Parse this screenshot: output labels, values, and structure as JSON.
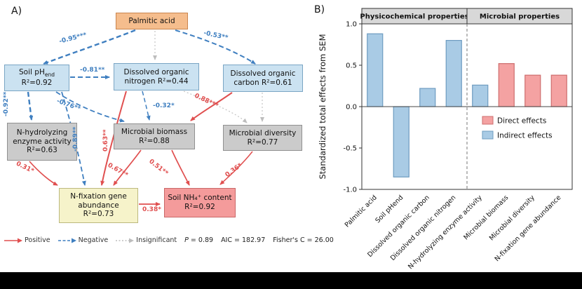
{
  "figure": {
    "panelA_label": "A)",
    "panelB_label": "B)"
  },
  "sem": {
    "boxes": {
      "palmitic": {
        "line1": "Palmitic acid"
      },
      "soil_ph": {
        "main": "Soil pH",
        "sub": "end",
        "r2": "R²=0.92"
      },
      "don": {
        "line1": "Dissolved organic",
        "line2": "nitrogen  R²=0.44"
      },
      "doc": {
        "line1": "Dissolved organic",
        "line2": "carbon   R²=0.61"
      },
      "nhea": {
        "line1": "N-hydrolyzing",
        "line2": "enzyme activity",
        "line3": "R²=0.63"
      },
      "mb": {
        "line1": "Microbial biomass",
        "line2": "R²=0.88"
      },
      "md": {
        "line1": "Microbial diversity",
        "line2": "R²=0.77"
      },
      "nfg": {
        "line1": "N-fixation gene",
        "line2": "abundance",
        "line3": "R²=0.73"
      },
      "nh4": {
        "line1": "Soil NH₄⁺ content",
        "line2": "R²=0.92"
      }
    },
    "coefficients": {
      "c1": "-0.95***",
      "c2": "-0.53**",
      "c3": "-0.81**",
      "c4": "-0.92**",
      "c5": "-0.76**",
      "c6": "-0.89**",
      "c7": "-0.32*",
      "c8": "0.88***",
      "c9": "0.63**",
      "c10": "0.31*",
      "c11": "0.67**",
      "c12": "0.51**",
      "c13": "0.36*",
      "c14": "0.38*"
    },
    "legend": {
      "positive": "Positive",
      "negative": "Negative",
      "insignificant": "Insignificant"
    },
    "stats": {
      "p_label": "P",
      "p_value": "= 0.89",
      "aic": "AIC = 182.97",
      "fisher": "Fisher's C = 26.00"
    }
  },
  "chart_data": {
    "type": "bar",
    "categories": [
      "Palmitic acid",
      "Soil pHend",
      "Dissolved organic carbon",
      "Dissolved organic nitrogen",
      "N-hydrolyzing enzyme activity",
      "Microbial biomass",
      "Microbial diversity",
      "N-fixation gene abundance"
    ],
    "values": [
      0.88,
      -0.85,
      0.22,
      0.8,
      0.26,
      0.52,
      0.38,
      0.38
    ],
    "effect_types": [
      "indirect",
      "indirect",
      "indirect",
      "indirect",
      "indirect",
      "direct",
      "direct",
      "direct"
    ],
    "title": "",
    "xlabel": "",
    "ylabel": "Standardized total effects from SEM",
    "ylim": [
      -1.0,
      1.0
    ],
    "yticks": [
      {
        "v": 1.0,
        "label": "1.0"
      },
      {
        "v": 0.5,
        "label": "0.5"
      },
      {
        "v": 0.0,
        "label": "0.0"
      },
      {
        "v": -0.5,
        "label": "-0.5"
      },
      {
        "v": -1.0,
        "label": "-1.0"
      }
    ],
    "groups": [
      {
        "label": "Physicochemical properties",
        "from": 0,
        "to": 3
      },
      {
        "label": "Microbial properties",
        "from": 4,
        "to": 7
      }
    ],
    "divider_after_index": 3,
    "legend": [
      {
        "label": "Direct  effects",
        "type": "direct",
        "fill": "#F4A2A2",
        "stroke": "#CE6E6E"
      },
      {
        "label": "Indirect effects",
        "type": "indirect",
        "fill": "#A9CBE5",
        "stroke": "#6E9CC0"
      }
    ],
    "legend_position": "center-right"
  }
}
